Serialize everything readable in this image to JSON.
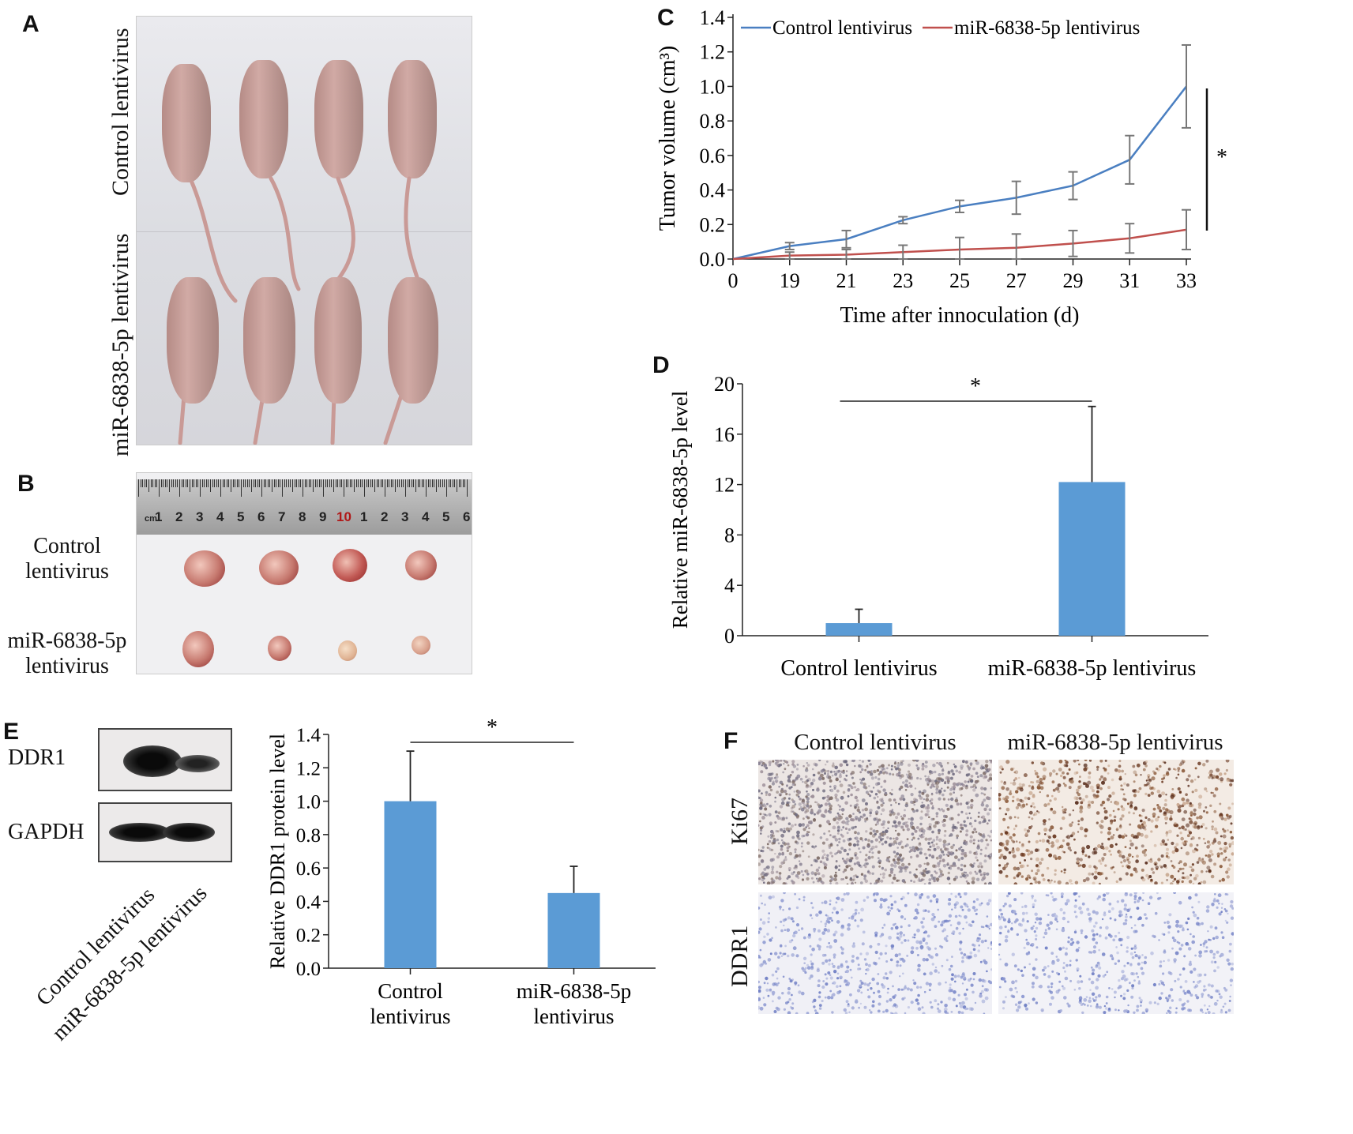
{
  "panels": {
    "A": {
      "letter": "A",
      "row_labels": [
        "Control lentivirus",
        "miR-6838-5p lentivirus"
      ]
    },
    "B": {
      "letter": "B",
      "row_labels": [
        [
          "Control",
          "lentivirus"
        ],
        [
          "miR-6838-5p",
          "lentivirus"
        ]
      ],
      "ruler": {
        "unit": "cm",
        "numbers": [
          "1",
          "2",
          "3",
          "4",
          "5",
          "6",
          "7",
          "8",
          "9",
          "10",
          "1",
          "2",
          "3",
          "4",
          "5",
          "6"
        ]
      }
    },
    "C": {
      "letter": "C"
    },
    "D": {
      "letter": "D"
    },
    "E": {
      "letter": "E",
      "blot": {
        "bands": [
          "DDR1",
          "GAPDH"
        ],
        "lanes": [
          "Control lentivirus",
          "miR-6838-5p lentivirus"
        ]
      }
    },
    "F": {
      "letter": "F",
      "columns": [
        "Control lentivirus",
        "miR-6838-5p lentivirus"
      ],
      "rows": [
        "Ki67",
        "DDR1"
      ]
    }
  },
  "chart_data": [
    {
      "id": "C",
      "type": "line",
      "xlabel": "Time after innoculation (d)",
      "ylabel": "Tumor volume (cm³)",
      "x": [
        0,
        19,
        21,
        23,
        25,
        27,
        29,
        31,
        33
      ],
      "x_tick_labels": [
        "0",
        "19",
        "21",
        "23",
        "25",
        "27",
        "29",
        "31",
        "33"
      ],
      "ylim": [
        0,
        1.4
      ],
      "y_ticks": [
        "0.0",
        "0.2",
        "0.4",
        "0.6",
        "0.8",
        "1.0",
        "1.2",
        "1.4"
      ],
      "legend_position": "top",
      "significance": "*",
      "series": [
        {
          "name": "Control lentivirus",
          "color": "#4a7fc1",
          "values": [
            0,
            0.075,
            0.115,
            0.225,
            0.305,
            0.355,
            0.425,
            0.575,
            1.0
          ],
          "errors": [
            0,
            0.02,
            0.05,
            0.02,
            0.035,
            0.095,
            0.08,
            0.14,
            0.24
          ]
        },
        {
          "name": "miR-6838-5p lentivirus",
          "color": "#c0504d",
          "values": [
            0,
            0.02,
            0.025,
            0.04,
            0.055,
            0.065,
            0.09,
            0.12,
            0.17
          ],
          "errors": [
            0,
            0.02,
            0.03,
            0.04,
            0.07,
            0.08,
            0.075,
            0.085,
            0.115
          ]
        }
      ]
    },
    {
      "id": "D",
      "type": "bar",
      "categories": [
        "Control lentivirus",
        "miR-6838-5p lentivirus"
      ],
      "values": [
        1.0,
        12.2
      ],
      "errors": [
        1.1,
        6.0
      ],
      "ylabel": "Relative miR-6838-5p level",
      "ylim": [
        0,
        20
      ],
      "y_ticks": [
        "0",
        "4",
        "8",
        "12",
        "16",
        "20"
      ],
      "color": "#5b9bd5",
      "significance": "*"
    },
    {
      "id": "E",
      "type": "bar",
      "categories": [
        [
          "Control",
          "lentivirus"
        ],
        [
          "miR-6838-5p",
          "lentivirus"
        ]
      ],
      "values": [
        1.0,
        0.45
      ],
      "errors": [
        0.3,
        0.16
      ],
      "ylabel": "Relative DDR1 protein level",
      "ylim": [
        0,
        1.4
      ],
      "y_ticks": [
        "0.0",
        "0.2",
        "0.4",
        "0.6",
        "0.8",
        "1.0",
        "1.2",
        "1.4"
      ],
      "color": "#5b9bd5",
      "significance": "*"
    }
  ]
}
